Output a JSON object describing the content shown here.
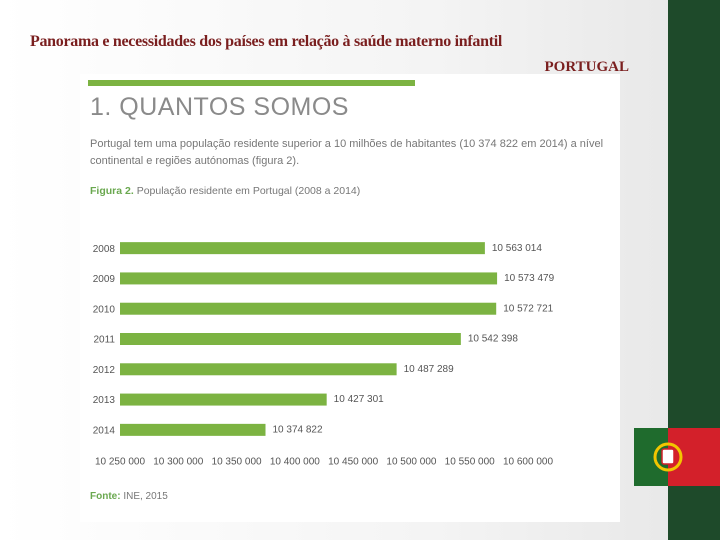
{
  "slide": {
    "title": "Panorama e necessidades dos países em relação à saúde materno infantil",
    "subtitle": "PORTUGAL"
  },
  "document": {
    "heading": "1. QUANTOS SOMOS",
    "paragraph": "Portugal tem uma população residente superior a 10 milhões de habitantes (10 374 822 em 2014) a nível continental e regiões autónomas (figura 2).",
    "figure_label": "Figura 2.",
    "figure_caption": "População residente em Portugal (2008 a 2014)",
    "source_label": "Fonte:",
    "source_text": "INE, 2015"
  },
  "chart_data": {
    "type": "barh",
    "color": "#7cb342",
    "categories": [
      "2008",
      "2009",
      "2010",
      "2011",
      "2012",
      "2013",
      "2014"
    ],
    "values": [
      10563014,
      10573479,
      10572721,
      10542398,
      10487289,
      10427301,
      10374822
    ],
    "value_labels": [
      "10 563 014",
      "10 573 479",
      "10 572 721",
      "10 542 398",
      "10 487 289",
      "10 427 301",
      "10 374 822"
    ],
    "xlim": [
      10250000,
      10600000
    ],
    "xticks": [
      {
        "value": 10250000,
        "label": "10 250 000"
      },
      {
        "value": 10300000,
        "label": "10 300 000"
      },
      {
        "value": 10350000,
        "label": "10 350 000"
      },
      {
        "value": 10400000,
        "label": "10 400 000"
      },
      {
        "value": 10450000,
        "label": "10 450 000"
      },
      {
        "value": 10500000,
        "label": "10 500 000"
      },
      {
        "value": 10550000,
        "label": "10 550 000"
      },
      {
        "value": 10600000,
        "label": "10 600 000"
      }
    ],
    "grid": false
  }
}
